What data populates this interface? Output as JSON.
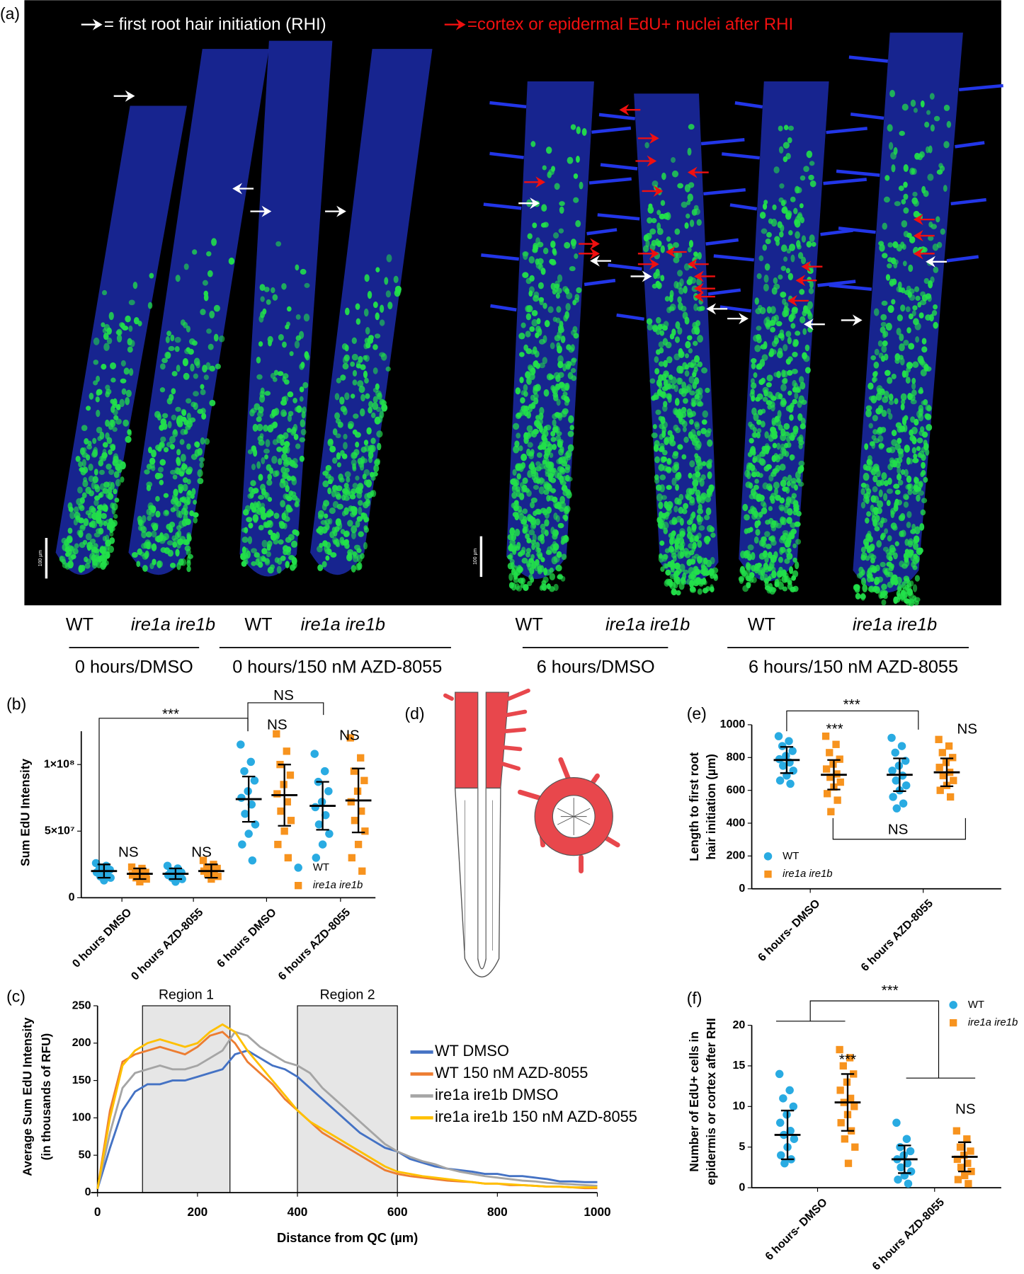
{
  "panel_labels": [
    "(a)",
    "(b)",
    "(c)",
    "(d)",
    "(e)",
    "(f)"
  ],
  "panel_a": {
    "legend_white": "= first root hair initiation (RHI)",
    "legend_red": "=cortex or epidermal EdU+ nuclei after RHI",
    "scale_bar_label": "100 µm",
    "groups": [
      {
        "genotypes": [
          "WT",
          "ire1a ire1b"
        ],
        "condition": "0 hours/DMSO"
      },
      {
        "genotypes": [
          "WT",
          "ire1a ire1b"
        ],
        "condition": "0 hours/150 nM AZD-8055"
      },
      {
        "genotypes": [
          "WT",
          "ire1a ire1b"
        ],
        "condition": "6 hours/DMSO"
      },
      {
        "genotypes": [
          "WT",
          "ire1a ire1b"
        ],
        "condition": "6 hours/150 nM AZD-8055"
      }
    ]
  },
  "chart_data": [
    {
      "type": "dot",
      "y_label": [
        "Sum EdU Intensity"
      ],
      "categories": [
        "0 hours DMSO",
        "0 hours AZD-8055",
        "6 hours DMSO",
        "6 hours AZD-8055"
      ],
      "ylim": [
        0,
        125000000.0
      ],
      "yticks": [
        0,
        {
          "value": 50000000.0,
          "label": "5×10⁷"
        },
        {
          "value": 100000000.0,
          "label": "1×10⁸"
        }
      ],
      "annotations": [
        "***",
        "NS",
        "NS",
        "NS",
        "NS",
        "NS"
      ],
      "series": [
        {
          "name": "WT",
          "color": "#29abe2",
          "marker": "circle",
          "points": [
            [
              26000000.0,
              24000000.0,
              22000000.0,
              21000000.0,
              20000000.0,
              19000000.0,
              18000000.0,
              16000000.0,
              15000000.0,
              13000000.0
            ],
            [
              24000000.0,
              22000000.0,
              20000000.0,
              19000000.0,
              18000000.0,
              17000000.0,
              16000000.0,
              15000000.0,
              14000000.0,
              12000000.0
            ],
            [
              115000000.0,
              102000000.0,
              95000000.0,
              88000000.0,
              80000000.0,
              75000000.0,
              70000000.0,
              63000000.0,
              55000000.0,
              48000000.0,
              40000000.0,
              28000000.0
            ],
            [
              108000000.0,
              95000000.0,
              87000000.0,
              80000000.0,
              72000000.0,
              68000000.0,
              62000000.0,
              55000000.0,
              48000000.0,
              40000000.0,
              30000000.0
            ]
          ],
          "mean": [
            20000000.0,
            18000000.0,
            74000000.0,
            69000000.0
          ],
          "sd": [
            5000000.0,
            4000000.0,
            17000000.0,
            18000000.0
          ]
        },
        {
          "name": "ire1a ire1b",
          "color": "#f7931e",
          "marker": "square",
          "points": [
            [
              23000000.0,
              22000000.0,
              20000000.0,
              19000000.0,
              18000000.0,
              17000000.0,
              16000000.0,
              15000000.0,
              14000000.0,
              12000000.0
            ],
            [
              28000000.0,
              25000000.0,
              23000000.0,
              22000000.0,
              21000000.0,
              20000000.0,
              19000000.0,
              18000000.0,
              16000000.0,
              14000000.0
            ],
            [
              123000000.0,
              110000000.0,
              100000000.0,
              92000000.0,
              85000000.0,
              78000000.0,
              72000000.0,
              65000000.0,
              58000000.0,
              50000000.0,
              40000000.0,
              30000000.0
            ],
            [
              120000000.0,
              105000000.0,
              95000000.0,
              88000000.0,
              80000000.0,
              72000000.0,
              65000000.0,
              58000000.0,
              50000000.0,
              40000000.0,
              30000000.0,
              20000000.0
            ]
          ],
          "mean": [
            18000000.0,
            20000000.0,
            77000000.0,
            73000000.0
          ],
          "sd": [
            4000000.0,
            5000000.0,
            23000000.0,
            24000000.0
          ]
        }
      ]
    },
    {
      "type": "line",
      "x_label": "Distance from QC (µm)",
      "y_label": [
        "Average Sum EdU Intensity",
        "(in thousands of RFU)"
      ],
      "xlim": [
        0,
        1000
      ],
      "xticks": [
        0,
        200,
        400,
        600,
        800,
        1000
      ],
      "ylim": [
        0,
        250
      ],
      "yticks": [
        0,
        50,
        100,
        150,
        200,
        250
      ],
      "regions": [
        {
          "label": "Region 1",
          "start": 90,
          "end": 265
        },
        {
          "label": "Region 2",
          "start": 400,
          "end": 600
        }
      ],
      "x": [
        0,
        25,
        50,
        75,
        100,
        125,
        150,
        175,
        200,
        225,
        250,
        275,
        300,
        325,
        350,
        375,
        400,
        425,
        450,
        475,
        500,
        525,
        550,
        575,
        600,
        625,
        650,
        675,
        700,
        725,
        750,
        775,
        800,
        825,
        850,
        875,
        900,
        925,
        950,
        975,
        1000
      ],
      "series": [
        {
          "name": "WT DMSO",
          "color": "#4472c4",
          "values": [
            5,
            60,
            110,
            135,
            145,
            145,
            150,
            150,
            155,
            160,
            165,
            185,
            190,
            180,
            170,
            165,
            155,
            140,
            125,
            110,
            95,
            80,
            70,
            60,
            55,
            45,
            40,
            35,
            32,
            30,
            28,
            25,
            25,
            22,
            22,
            20,
            18,
            15,
            15,
            14,
            14
          ]
        },
        {
          "name": "WT 150 nM AZD-8055",
          "color": "#ed7d31",
          "values": [
            5,
            110,
            175,
            185,
            190,
            195,
            190,
            185,
            195,
            210,
            215,
            200,
            175,
            160,
            145,
            125,
            110,
            95,
            80,
            70,
            60,
            50,
            40,
            30,
            25,
            22,
            20,
            18,
            16,
            15,
            14,
            12,
            12,
            10,
            10,
            9,
            8,
            8,
            7,
            6,
            6
          ]
        },
        {
          "name": "ire1a ire1b DMSO",
          "color": "#a5a5a5",
          "values": [
            5,
            80,
            140,
            160,
            165,
            170,
            165,
            165,
            170,
            180,
            190,
            215,
            210,
            195,
            185,
            175,
            170,
            160,
            140,
            125,
            110,
            95,
            80,
            65,
            55,
            48,
            42,
            38,
            32,
            28,
            25,
            22,
            20,
            18,
            16,
            15,
            13,
            12,
            11,
            10,
            9
          ]
        },
        {
          "name": "ire1a ire1b 150 nM AZD-8055",
          "color": "#ffc000",
          "values": [
            5,
            100,
            170,
            190,
            200,
            205,
            200,
            195,
            200,
            215,
            225,
            215,
            190,
            170,
            150,
            130,
            110,
            95,
            85,
            75,
            65,
            55,
            45,
            35,
            28,
            25,
            22,
            20,
            18,
            16,
            14,
            12,
            12,
            11,
            10,
            9,
            8,
            8,
            7,
            7,
            7
          ]
        }
      ]
    },
    {
      "type": "dot",
      "y_label": [
        "Length to first root",
        "hair initiation (µm)"
      ],
      "categories": [
        "6 hours- DMSO",
        "6 hours AZD-8055"
      ],
      "ylim": [
        0,
        1000
      ],
      "yticks": [
        0,
        200,
        400,
        600,
        800,
        1000
      ],
      "annotations": [
        "***",
        "***",
        "NS",
        "NS"
      ],
      "series": [
        {
          "name": "WT",
          "color": "#29abe2",
          "marker": "circle",
          "points": [
            [
              930,
              900,
              870,
              840,
              810,
              790,
              770,
              750,
              720,
              690,
              660,
              640
            ],
            [
              920,
              870,
              830,
              780,
              750,
              720,
              690,
              660,
              630,
              600,
              560,
              520,
              490
            ]
          ],
          "mean": [
            785,
            695
          ],
          "sd": [
            80,
            100
          ]
        },
        {
          "name": "ire1a ire1b",
          "color": "#f7931e",
          "marker": "square",
          "points": [
            [
              930,
              880,
              830,
              790,
              760,
              730,
              700,
              680,
              650,
              620,
              580,
              540,
              470
            ],
            [
              910,
              870,
              830,
              800,
              770,
              740,
              710,
              690,
              660,
              630,
              600,
              560
            ]
          ],
          "mean": [
            695,
            710
          ],
          "sd": [
            90,
            85
          ]
        }
      ]
    },
    {
      "type": "dot",
      "y_label": [
        "Number of EdU+ cells in",
        "epidermis or cortex after RHI"
      ],
      "categories": [
        "6 hours- DMSO",
        "6 hours AZD-8055"
      ],
      "ylim": [
        0,
        20
      ],
      "yticks": [
        0,
        5,
        10,
        15,
        20
      ],
      "annotations": [
        "***",
        "***",
        "NS"
      ],
      "series": [
        {
          "name": "WT",
          "color": "#29abe2",
          "marker": "circle",
          "points": [
            [
              14,
              12,
              11,
              10,
              9,
              8,
              7,
              6.5,
              6,
              5,
              4,
              3.5,
              3
            ],
            [
              8,
              6,
              5,
              4.5,
              4,
              3.5,
              3,
              2.5,
              2,
              1.5,
              1,
              0.5
            ]
          ],
          "mean": [
            6.5,
            3.5
          ],
          "sd": [
            3,
            1.7
          ]
        },
        {
          "name": "ire1a ire1b",
          "color": "#f7931e",
          "marker": "square",
          "points": [
            [
              17,
              16,
              15,
              14,
              13,
              12,
              11,
              10.5,
              10,
              9,
              8,
              7,
              6,
              5,
              3
            ],
            [
              7,
              6,
              5,
              4.5,
              4,
              3.5,
              3,
              2.5,
              2,
              1.5,
              1,
              0.5
            ]
          ],
          "mean": [
            10.5,
            3.8
          ],
          "sd": [
            3.5,
            1.8
          ]
        }
      ]
    }
  ]
}
